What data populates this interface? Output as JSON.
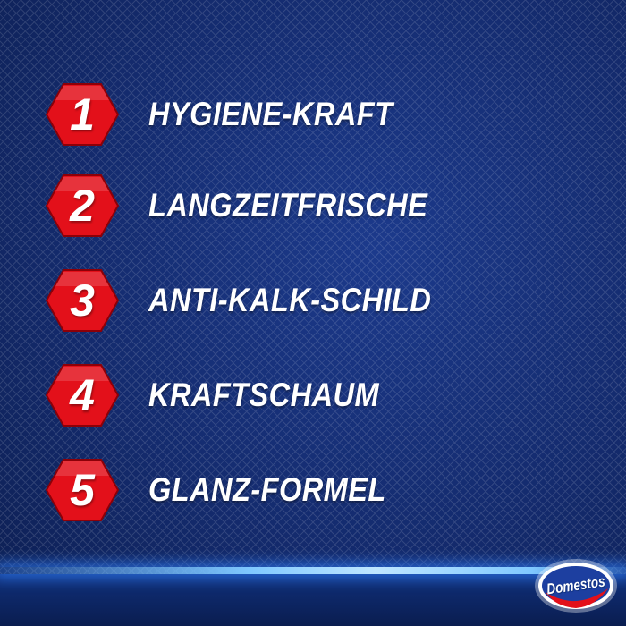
{
  "items": [
    {
      "number": "1",
      "label": "HYGIENE-KRAFT"
    },
    {
      "number": "2",
      "label": "LANGZEITFRISCHE"
    },
    {
      "number": "3",
      "label": "ANTI-KALK-SCHILD"
    },
    {
      "number": "4",
      "label": "KRAFTSCHAUM"
    },
    {
      "number": "5",
      "label": "GLANZ-FORMEL"
    }
  ],
  "brand": {
    "logo_text": "Domestos"
  },
  "colors": {
    "background": "#142b6e",
    "badge": "#e3101a",
    "text": "#ffffff",
    "glow": "#7fc8ff"
  }
}
